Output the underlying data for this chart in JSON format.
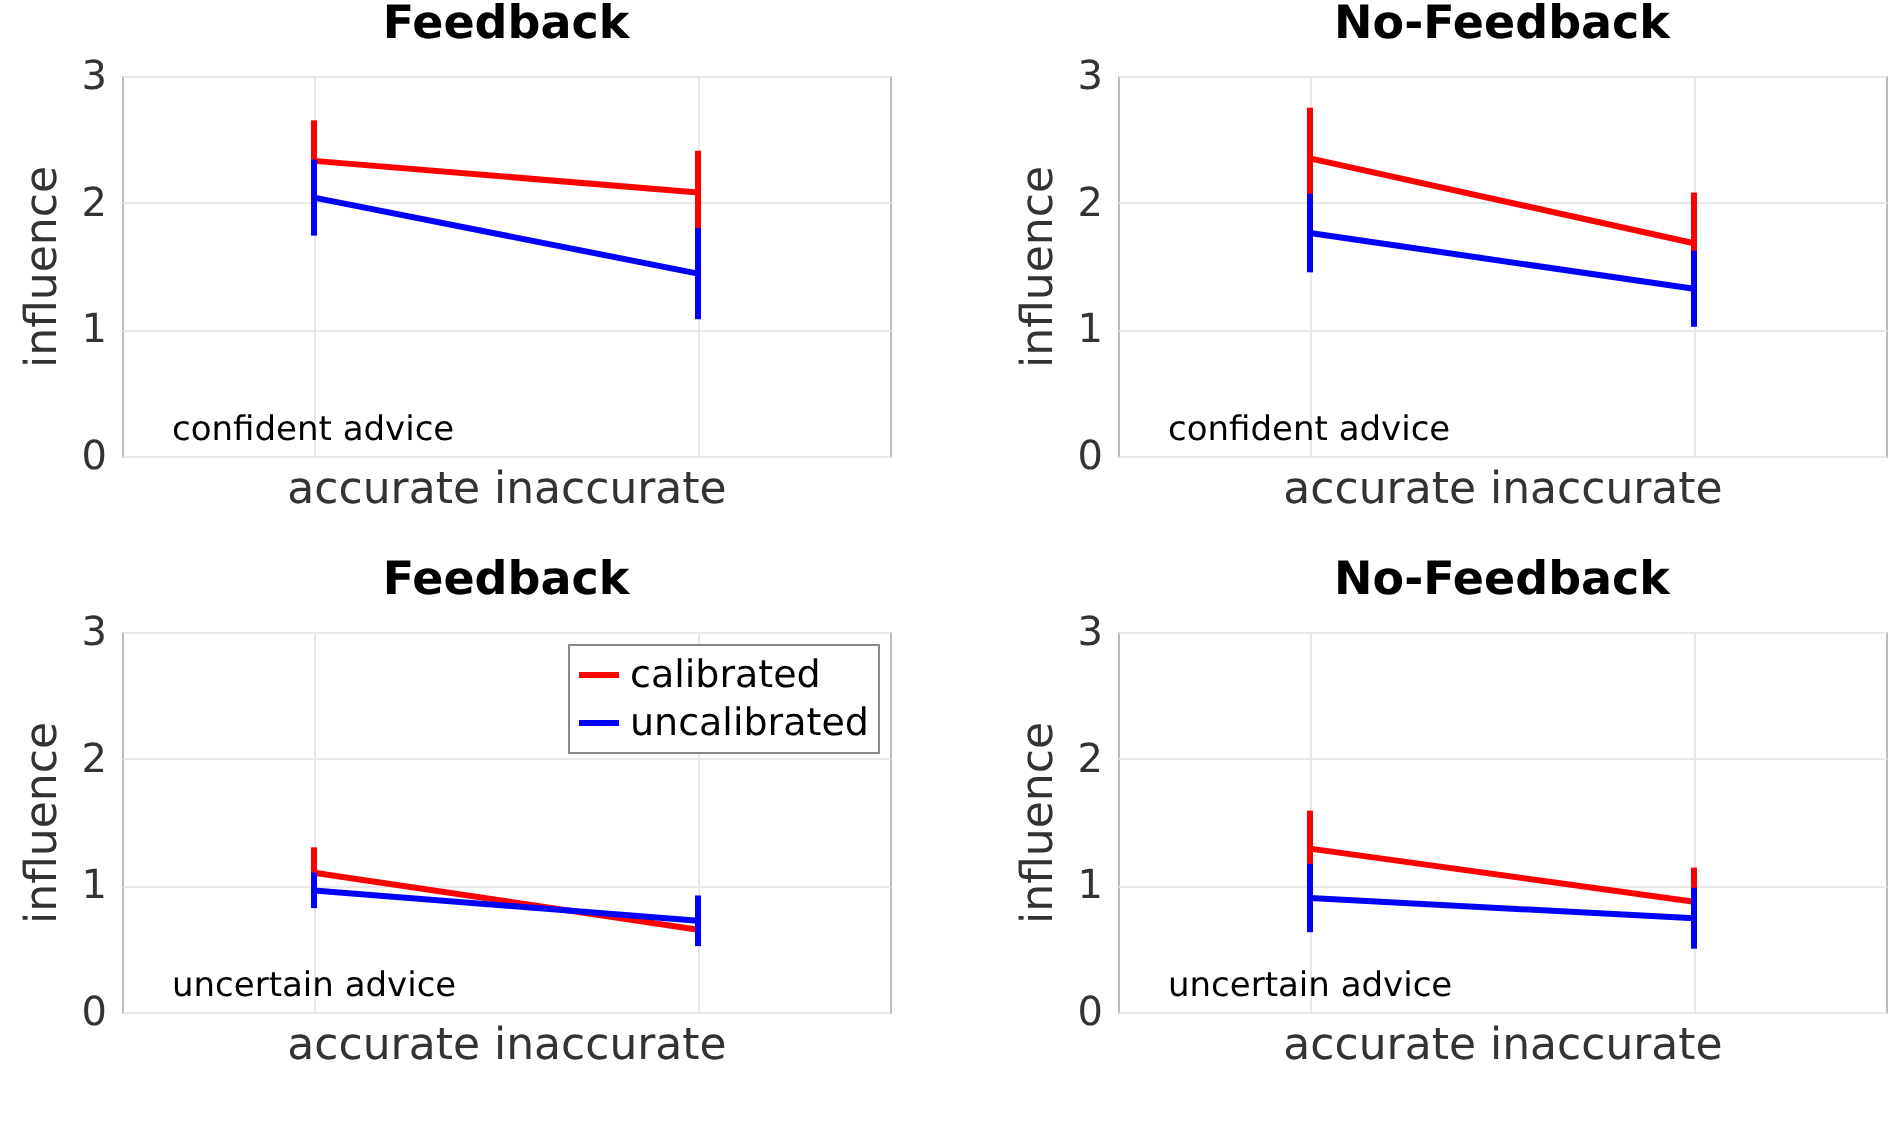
{
  "chart_data": [
    {
      "type": "line",
      "title": "Feedback",
      "xlabel": "accurate inaccurate",
      "ylabel": "influence",
      "categories": [
        null,
        null
      ],
      "ylim": [
        0,
        3
      ],
      "yticks": [
        0,
        1,
        2,
        3
      ],
      "grid": true,
      "tick_labels": "y",
      "annotations": [
        "confident advice"
      ],
      "series": [
        {
          "color": "#ff0000",
          "values": [
            2.33,
            2.08
          ],
          "errors": [
            0.32,
            0.33
          ]
        },
        {
          "color": "#0000ff",
          "values": [
            2.04,
            1.44
          ],
          "errors": [
            0.3,
            0.36
          ]
        }
      ]
    },
    {
      "type": "line",
      "title": "No-Feedback",
      "xlabel": "accurate inaccurate",
      "ylabel": "influence",
      "categories": [
        null,
        null
      ],
      "ylim": [
        0,
        3
      ],
      "yticks": [
        0,
        1,
        2,
        3
      ],
      "grid": true,
      "tick_labels": "y",
      "annotations": [
        "confident advice"
      ],
      "series": [
        {
          "color": "#ff0000",
          "values": [
            2.35,
            1.68
          ],
          "errors": [
            0.4,
            0.4
          ]
        },
        {
          "color": "#0000ff",
          "values": [
            1.76,
            1.32
          ],
          "errors": [
            0.31,
            0.3
          ]
        }
      ]
    },
    {
      "type": "line",
      "title": "Feedback",
      "xlabel": "accurate inaccurate",
      "ylabel": "influence",
      "categories": [
        null,
        null
      ],
      "ylim": [
        0,
        3
      ],
      "yticks": [
        0,
        1,
        2,
        3
      ],
      "grid": true,
      "tick_labels": "y",
      "legend": "top right",
      "annotations": [
        "uncertain advice"
      ],
      "series": [
        {
          "name": "calibrated",
          "color": "#ff0000",
          "values": [
            1.1,
            0.65
          ],
          "errors": [
            0.2,
            null
          ]
        },
        {
          "name": "uncalibrated",
          "color": "#0000ff",
          "values": [
            0.96,
            0.72
          ],
          "errors": [
            0.14,
            0.2
          ]
        }
      ]
    },
    {
      "type": "line",
      "title": "No-Feedback",
      "xlabel": "accurate inaccurate",
      "ylabel": "influence",
      "categories": [
        null,
        null
      ],
      "ylim": [
        0,
        3
      ],
      "yticks": [
        0,
        1,
        2,
        3
      ],
      "grid": true,
      "tick_labels": "y",
      "annotations": [
        "uncertain advice"
      ],
      "series": [
        {
          "color": "#ff0000",
          "values": [
            1.29,
            0.87
          ],
          "errors": [
            0.3,
            0.27
          ]
        },
        {
          "color": "#0000ff",
          "values": [
            0.9,
            0.74
          ],
          "errors": [
            0.27,
            0.24
          ]
        }
      ]
    }
  ]
}
